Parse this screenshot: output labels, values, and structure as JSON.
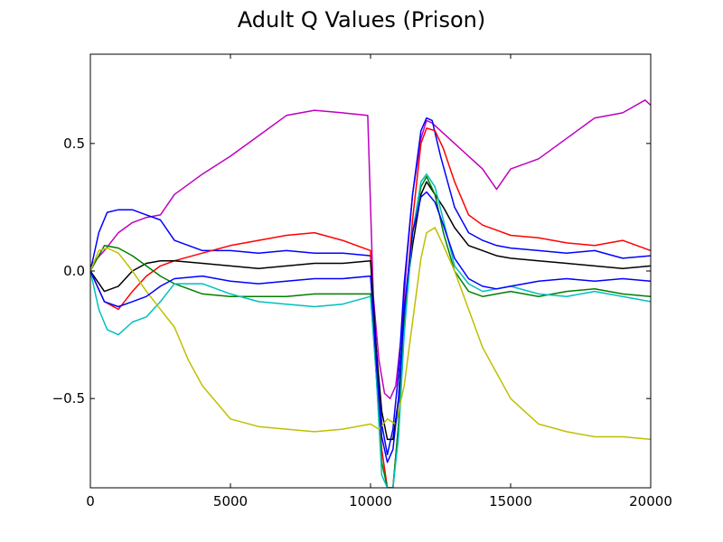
{
  "chart_data": {
    "type": "line",
    "title": "Adult Q Values (Prison)",
    "xlabel": "",
    "ylabel": "",
    "xlim": [
      0,
      20000
    ],
    "ylim": [
      -0.85,
      0.85
    ],
    "xticks": [
      0,
      5000,
      10000,
      15000,
      20000
    ],
    "xtick_labels": [
      "0",
      "5000",
      "10000",
      "15000",
      "20000"
    ],
    "yticks": [
      -0.5,
      0.0,
      0.5
    ],
    "ytick_labels": [
      "−0.5",
      "0.0",
      "0.5"
    ],
    "grid": false,
    "legend": "none",
    "series": [
      {
        "color": "#bf00bf",
        "x": [
          0,
          500,
          1000,
          1500,
          2000,
          2500,
          3000,
          4000,
          5000,
          6000,
          7000,
          8000,
          9000,
          9900,
          10100,
          10300,
          10500,
          10700,
          10900,
          11100,
          11300,
          11500,
          11800,
          12000,
          12200,
          12500,
          13000,
          13500,
          14000,
          14500,
          15000,
          16000,
          17000,
          18000,
          19000,
          19800,
          20000
        ],
        "y": [
          0.02,
          0.08,
          0.15,
          0.19,
          0.21,
          0.22,
          0.3,
          0.38,
          0.45,
          0.53,
          0.61,
          0.63,
          0.62,
          0.61,
          -0.1,
          -0.35,
          -0.48,
          -0.5,
          -0.45,
          -0.25,
          0.05,
          0.3,
          0.52,
          0.59,
          0.58,
          0.55,
          0.5,
          0.45,
          0.4,
          0.32,
          0.4,
          0.44,
          0.52,
          0.6,
          0.62,
          0.67,
          0.65
        ]
      },
      {
        "color": "#0000ff",
        "x": [
          0,
          300,
          600,
          1000,
          1500,
          2000,
          2500,
          3000,
          4000,
          5000,
          6000,
          7000,
          8000,
          9000,
          10000,
          10200,
          10400,
          10600,
          10800,
          11000,
          11200,
          11500,
          11800,
          12000,
          12200,
          12500,
          13000,
          13500,
          14000,
          14500,
          15000,
          16000,
          17000,
          18000,
          19000,
          20000
        ],
        "y": [
          0.0,
          0.15,
          0.23,
          0.24,
          0.24,
          0.22,
          0.2,
          0.12,
          0.08,
          0.08,
          0.07,
          0.08,
          0.07,
          0.07,
          0.06,
          -0.3,
          -0.6,
          -0.72,
          -0.62,
          -0.4,
          -0.05,
          0.3,
          0.55,
          0.6,
          0.59,
          0.45,
          0.25,
          0.15,
          0.12,
          0.1,
          0.09,
          0.08,
          0.07,
          0.08,
          0.05,
          0.06
        ]
      },
      {
        "color": "#ff0000",
        "x": [
          0,
          500,
          1000,
          1500,
          2000,
          2500,
          3000,
          4000,
          5000,
          6000,
          7000,
          8000,
          9000,
          10000,
          10200,
          10400,
          10600,
          10800,
          11000,
          11200,
          11500,
          11800,
          12000,
          12300,
          12600,
          13000,
          13500,
          14000,
          14500,
          15000,
          16000,
          17000,
          18000,
          19000,
          20000
        ],
        "y": [
          0.0,
          -0.12,
          -0.15,
          -0.08,
          -0.02,
          0.02,
          0.04,
          0.07,
          0.1,
          0.12,
          0.14,
          0.15,
          0.12,
          0.08,
          -0.4,
          -0.7,
          -0.85,
          -0.85,
          -0.6,
          -0.2,
          0.2,
          0.5,
          0.56,
          0.55,
          0.48,
          0.35,
          0.22,
          0.18,
          0.16,
          0.14,
          0.13,
          0.11,
          0.1,
          0.12,
          0.08
        ]
      },
      {
        "color": "#000000",
        "x": [
          0,
          500,
          1000,
          1500,
          2000,
          2500,
          3000,
          4000,
          5000,
          6000,
          7000,
          8000,
          9000,
          10000,
          10200,
          10400,
          10600,
          10800,
          11000,
          11200,
          11500,
          11800,
          12000,
          12300,
          12600,
          13000,
          13500,
          14000,
          14500,
          15000,
          16000,
          17000,
          18000,
          19000,
          20000
        ],
        "y": [
          0.0,
          -0.08,
          -0.06,
          0.0,
          0.03,
          0.04,
          0.04,
          0.03,
          0.02,
          0.01,
          0.02,
          0.03,
          0.03,
          0.04,
          -0.3,
          -0.55,
          -0.66,
          -0.66,
          -0.5,
          -0.15,
          0.1,
          0.3,
          0.35,
          0.3,
          0.25,
          0.17,
          0.1,
          0.08,
          0.06,
          0.05,
          0.04,
          0.03,
          0.02,
          0.01,
          0.02
        ]
      },
      {
        "color": "#007f00",
        "x": [
          0,
          500,
          1000,
          1500,
          2000,
          2500,
          3000,
          4000,
          5000,
          6000,
          7000,
          8000,
          9000,
          10000,
          10200,
          10400,
          10600,
          10800,
          11000,
          11200,
          11500,
          11800,
          12000,
          12300,
          12600,
          13000,
          13500,
          14000,
          14500,
          15000,
          16000,
          17000,
          18000,
          19000,
          20000
        ],
        "y": [
          0.0,
          0.1,
          0.09,
          0.06,
          0.02,
          -0.02,
          -0.05,
          -0.09,
          -0.1,
          -0.1,
          -0.1,
          -0.09,
          -0.09,
          -0.09,
          -0.4,
          -0.75,
          -0.85,
          -0.85,
          -0.6,
          -0.2,
          0.15,
          0.33,
          0.37,
          0.3,
          0.15,
          0.0,
          -0.08,
          -0.1,
          -0.09,
          -0.08,
          -0.1,
          -0.08,
          -0.07,
          -0.09,
          -0.1
        ]
      },
      {
        "color": "#00bfbf",
        "x": [
          0,
          300,
          600,
          1000,
          1500,
          2000,
          2500,
          3000,
          4000,
          5000,
          6000,
          7000,
          8000,
          9000,
          10000,
          10200,
          10400,
          10600,
          10800,
          11000,
          11200,
          11500,
          11800,
          12000,
          12300,
          12600,
          13000,
          13500,
          14000,
          14500,
          15000,
          16000,
          17000,
          18000,
          19000,
          20000
        ],
        "y": [
          0.0,
          -0.15,
          -0.23,
          -0.25,
          -0.2,
          -0.18,
          -0.12,
          -0.05,
          -0.05,
          -0.09,
          -0.12,
          -0.13,
          -0.14,
          -0.13,
          -0.1,
          -0.4,
          -0.8,
          -0.85,
          -0.85,
          -0.65,
          -0.25,
          0.15,
          0.35,
          0.38,
          0.33,
          0.2,
          0.02,
          -0.05,
          -0.08,
          -0.07,
          -0.06,
          -0.09,
          -0.1,
          -0.08,
          -0.1,
          -0.12
        ]
      },
      {
        "color": "#bfbf00",
        "x": [
          0,
          300,
          600,
          1000,
          1500,
          2000,
          2500,
          3000,
          3500,
          4000,
          5000,
          6000,
          7000,
          8000,
          9000,
          10000,
          10300,
          10600,
          10900,
          11200,
          11500,
          11800,
          12000,
          12300,
          12600,
          13000,
          13500,
          14000,
          14500,
          15000,
          15500,
          16000,
          17000,
          18000,
          19000,
          20000
        ],
        "y": [
          0.0,
          0.08,
          0.09,
          0.07,
          0.0,
          -0.08,
          -0.15,
          -0.22,
          -0.35,
          -0.45,
          -0.58,
          -0.61,
          -0.62,
          -0.63,
          -0.62,
          -0.6,
          -0.62,
          -0.58,
          -0.6,
          -0.45,
          -0.2,
          0.05,
          0.15,
          0.17,
          0.1,
          0.0,
          -0.15,
          -0.3,
          -0.4,
          -0.5,
          -0.55,
          -0.6,
          -0.63,
          -0.65,
          -0.65,
          -0.66
        ]
      },
      {
        "color": "#0000ff",
        "x": [
          0,
          500,
          1000,
          1500,
          2000,
          2500,
          3000,
          4000,
          5000,
          6000,
          7000,
          8000,
          9000,
          10000,
          10200,
          10400,
          10600,
          10800,
          11000,
          11200,
          11500,
          11800,
          12000,
          12300,
          12600,
          13000,
          13500,
          14000,
          14500,
          15000,
          16000,
          17000,
          18000,
          19000,
          20000
        ],
        "y": [
          0.0,
          -0.12,
          -0.14,
          -0.12,
          -0.1,
          -0.06,
          -0.03,
          -0.02,
          -0.04,
          -0.05,
          -0.04,
          -0.03,
          -0.03,
          -0.02,
          -0.35,
          -0.65,
          -0.75,
          -0.7,
          -0.5,
          -0.15,
          0.15,
          0.29,
          0.31,
          0.27,
          0.18,
          0.05,
          -0.03,
          -0.06,
          -0.07,
          -0.06,
          -0.04,
          -0.03,
          -0.04,
          -0.03,
          -0.04
        ]
      }
    ]
  }
}
